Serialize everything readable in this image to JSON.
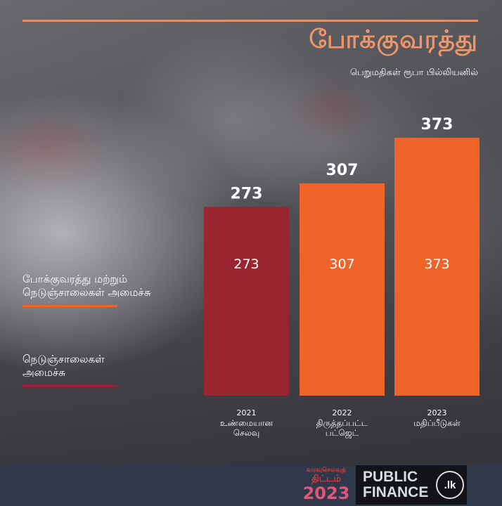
{
  "header": {
    "title": "போக்குவரத்து",
    "subtitle": "பெறுமதிகள் ரூபா பில்லியனில்"
  },
  "legend": [
    {
      "label": "போக்குவரத்து மற்றும் நெடுஞ்சாலைகள் அமைச்சு",
      "color": "#f0642a"
    },
    {
      "label": "நெடுஞ்சாலைகள் அமைச்சு",
      "color": "#9a2530"
    }
  ],
  "chart_data": {
    "type": "bar",
    "categories": [
      {
        "year": "2021",
        "label": "உண்மையான செலவு"
      },
      {
        "year": "2022",
        "label": "திருத்தப்பட்ட பட்ஜெட்"
      },
      {
        "year": "2023",
        "label": "மதிப்பீடுகள்"
      }
    ],
    "values": [
      273,
      307,
      373
    ],
    "colors": [
      "#9a2530",
      "#f0642a",
      "#f0642a"
    ],
    "ylim": [
      0,
      373
    ]
  },
  "footer": {
    "budget_logo_line1": "வரவுசெலவுத்",
    "budget_logo_line2": "திட்டம்",
    "budget_logo_year": "2023",
    "publicfinance_line1": "PUBLIC",
    "publicfinance_line2": "FINANCE",
    "publicfinance_badge": ".lk"
  }
}
